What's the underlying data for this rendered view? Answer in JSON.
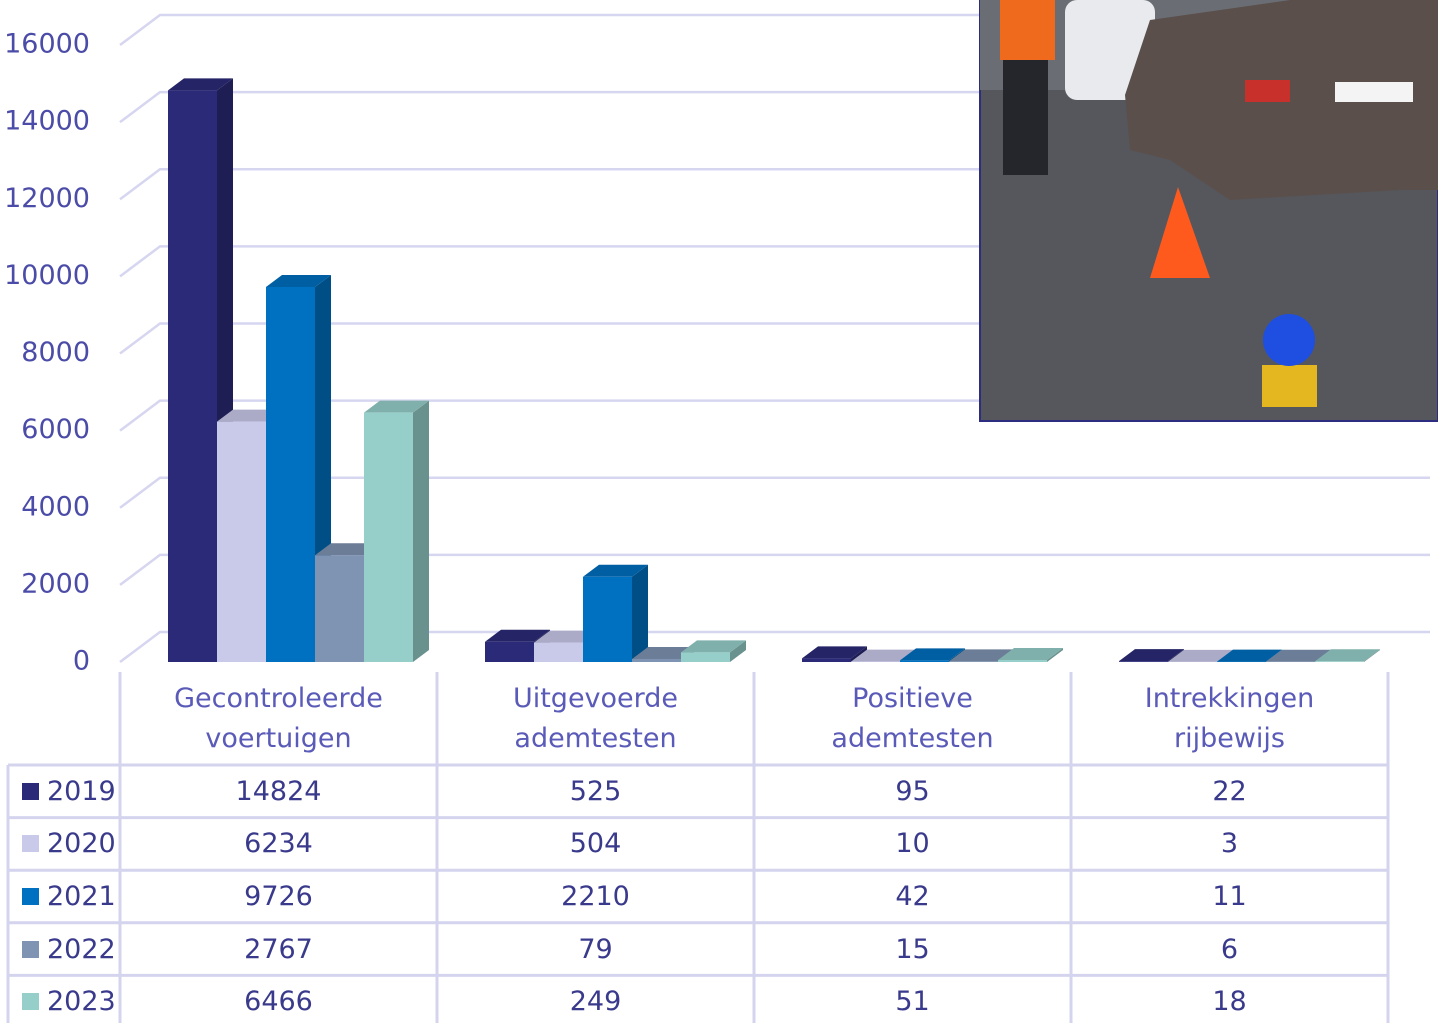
{
  "chart_data": {
    "type": "bar3d",
    "categories": [
      "Gecontroleerde voertuigen",
      "Uitgevoerde ademtesten",
      "Positieve ademtesten",
      "Intrekkingen rijbewijs"
    ],
    "series": [
      {
        "name": "2019",
        "color": "#2b2a78",
        "values": [
          14824,
          525,
          95,
          22
        ]
      },
      {
        "name": "2020",
        "color": "#c9c9ea",
        "values": [
          6234,
          504,
          10,
          3
        ]
      },
      {
        "name": "2021",
        "color": "#0070c0",
        "values": [
          9726,
          2210,
          42,
          11
        ]
      },
      {
        "name": "2022",
        "color": "#7f93b2",
        "values": [
          2767,
          79,
          15,
          6
        ]
      },
      {
        "name": "2023",
        "color": "#96cfca",
        "values": [
          6466,
          249,
          51,
          18
        ]
      }
    ],
    "ylim": [
      0,
      16000
    ],
    "yticks": [
      0,
      2000,
      4000,
      6000,
      8000,
      10000,
      12000,
      14000,
      16000
    ],
    "grid": true,
    "data_table": true
  }
}
